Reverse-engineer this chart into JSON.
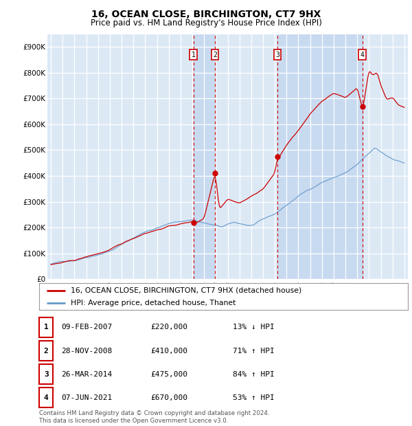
{
  "title": "16, OCEAN CLOSE, BIRCHINGTON, CT7 9HX",
  "subtitle": "Price paid vs. HM Land Registry's House Price Index (HPI)",
  "plot_bg_color": "#dce9f5",
  "ylim": [
    0,
    950000
  ],
  "yticks": [
    0,
    100000,
    200000,
    300000,
    400000,
    500000,
    600000,
    700000,
    800000,
    900000
  ],
  "ytick_labels": [
    "£0",
    "£100K",
    "£200K",
    "£300K",
    "£400K",
    "£500K",
    "£600K",
    "£700K",
    "£800K",
    "£900K"
  ],
  "sale_dates": [
    2007.1,
    2008.92,
    2014.23,
    2021.43
  ],
  "sale_prices": [
    220000,
    410000,
    475000,
    670000
  ],
  "sale_labels": [
    "1",
    "2",
    "3",
    "4"
  ],
  "legend_line1": "16, OCEAN CLOSE, BIRCHINGTON, CT7 9HX (detached house)",
  "legend_line2": "HPI: Average price, detached house, Thanet",
  "table_rows": [
    [
      "1",
      "09-FEB-2007",
      "£220,000",
      "13% ↓ HPI"
    ],
    [
      "2",
      "28-NOV-2008",
      "£410,000",
      "71% ↑ HPI"
    ],
    [
      "3",
      "26-MAR-2014",
      "£475,000",
      "84% ↑ HPI"
    ],
    [
      "4",
      "07-JUN-2021",
      "£670,000",
      "53% ↑ HPI"
    ]
  ],
  "footer": "Contains HM Land Registry data © Crown copyright and database right 2024.\nThis data is licensed under the Open Government Licence v3.0.",
  "red_color": "#cc0000",
  "blue_color": "#6699cc",
  "highlight_color": "#c8daf0",
  "vline_color": "#cc0000"
}
